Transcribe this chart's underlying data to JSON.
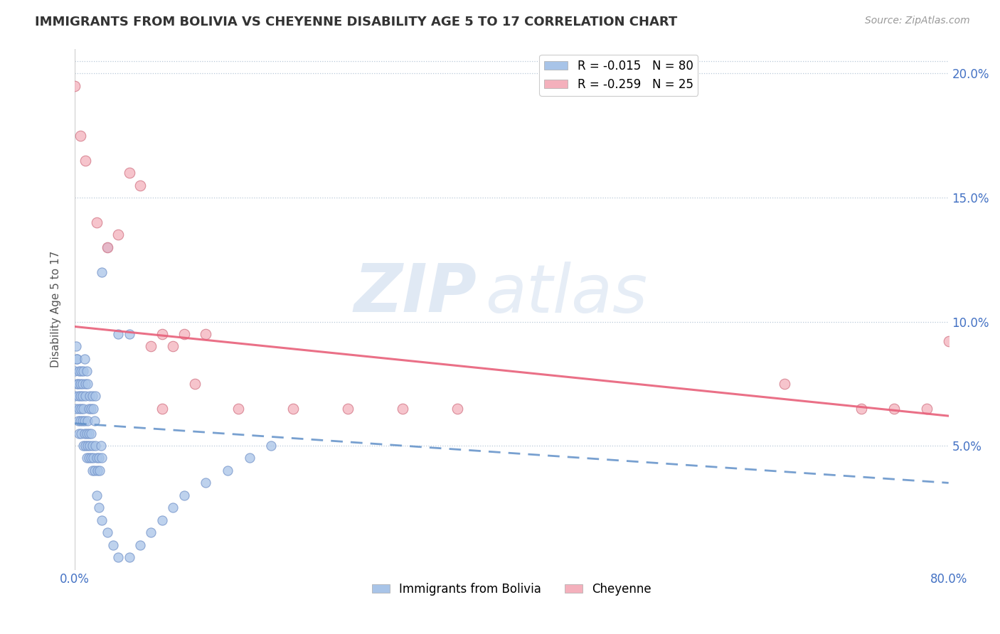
{
  "title": "IMMIGRANTS FROM BOLIVIA VS CHEYENNE DISABILITY AGE 5 TO 17 CORRELATION CHART",
  "source": "Source: ZipAtlas.com",
  "ylabel": "Disability Age 5 to 17",
  "xlim": [
    0.0,
    0.8
  ],
  "ylim": [
    0.0,
    0.21
  ],
  "yticks_right": [
    0.05,
    0.1,
    0.15,
    0.2
  ],
  "yticklabels_right": [
    "5.0%",
    "10.0%",
    "15.0%",
    "20.0%"
  ],
  "legend_blue_r": "-0.015",
  "legend_blue_n": "80",
  "legend_pink_r": "-0.259",
  "legend_pink_n": "25",
  "blue_color": "#a8c4e8",
  "blue_edge": "#7090c8",
  "pink_color": "#f4b0bc",
  "pink_edge": "#d07080",
  "trendline_blue_color": "#6090c8",
  "trendline_pink_color": "#e8607a",
  "watermark_zip": "ZIP",
  "watermark_atlas": "atlas",
  "bolivia_trendline_x0": 0.0,
  "bolivia_trendline_y0": 0.059,
  "bolivia_trendline_x1": 0.8,
  "bolivia_trendline_y1": 0.035,
  "cheyenne_trendline_x0": 0.0,
  "cheyenne_trendline_y0": 0.098,
  "cheyenne_trendline_x1": 0.8,
  "cheyenne_trendline_y1": 0.062,
  "bolivia_points_x": [
    0.0,
    0.001,
    0.002,
    0.002,
    0.003,
    0.003,
    0.004,
    0.004,
    0.005,
    0.005,
    0.006,
    0.006,
    0.007,
    0.007,
    0.008,
    0.008,
    0.009,
    0.009,
    0.01,
    0.01,
    0.011,
    0.011,
    0.012,
    0.012,
    0.013,
    0.013,
    0.014,
    0.015,
    0.015,
    0.016,
    0.016,
    0.017,
    0.018,
    0.019,
    0.02,
    0.021,
    0.022,
    0.023,
    0.024,
    0.025,
    0.0,
    0.001,
    0.002,
    0.003,
    0.004,
    0.005,
    0.006,
    0.007,
    0.008,
    0.009,
    0.01,
    0.011,
    0.012,
    0.013,
    0.014,
    0.015,
    0.016,
    0.017,
    0.018,
    0.019,
    0.02,
    0.022,
    0.025,
    0.03,
    0.035,
    0.04,
    0.05,
    0.06,
    0.07,
    0.08,
    0.09,
    0.1,
    0.12,
    0.14,
    0.16,
    0.18,
    0.025,
    0.03,
    0.04,
    0.05
  ],
  "bolivia_points_y": [
    0.07,
    0.065,
    0.075,
    0.085,
    0.07,
    0.06,
    0.065,
    0.055,
    0.06,
    0.07,
    0.055,
    0.065,
    0.06,
    0.07,
    0.05,
    0.065,
    0.055,
    0.06,
    0.05,
    0.07,
    0.045,
    0.055,
    0.05,
    0.06,
    0.045,
    0.055,
    0.05,
    0.045,
    0.055,
    0.04,
    0.05,
    0.045,
    0.04,
    0.05,
    0.045,
    0.04,
    0.045,
    0.04,
    0.05,
    0.045,
    0.08,
    0.09,
    0.085,
    0.075,
    0.08,
    0.075,
    0.08,
    0.075,
    0.08,
    0.085,
    0.075,
    0.08,
    0.075,
    0.065,
    0.07,
    0.065,
    0.07,
    0.065,
    0.06,
    0.07,
    0.03,
    0.025,
    0.02,
    0.015,
    0.01,
    0.005,
    0.005,
    0.01,
    0.015,
    0.02,
    0.025,
    0.03,
    0.035,
    0.04,
    0.045,
    0.05,
    0.12,
    0.13,
    0.095,
    0.095
  ],
  "cheyenne_points_x": [
    0.0,
    0.005,
    0.01,
    0.02,
    0.03,
    0.04,
    0.05,
    0.06,
    0.07,
    0.08,
    0.09,
    0.1,
    0.11,
    0.12,
    0.08,
    0.15,
    0.2,
    0.25,
    0.3,
    0.35,
    0.65,
    0.72,
    0.75,
    0.78,
    0.8
  ],
  "cheyenne_points_y": [
    0.195,
    0.175,
    0.165,
    0.14,
    0.13,
    0.135,
    0.16,
    0.155,
    0.09,
    0.095,
    0.09,
    0.095,
    0.075,
    0.095,
    0.065,
    0.065,
    0.065,
    0.065,
    0.065,
    0.065,
    0.075,
    0.065,
    0.065,
    0.065,
    0.092
  ]
}
